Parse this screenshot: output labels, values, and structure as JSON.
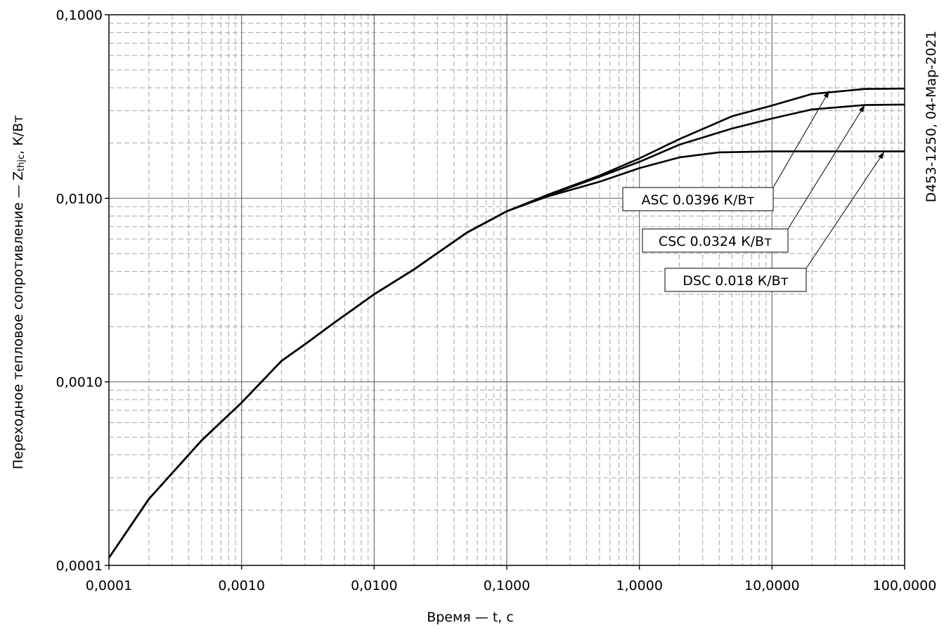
{
  "chart_data": {
    "type": "line",
    "xlabel": "Время — t, с",
    "ylabel_main": "Переходное тепловое сопротивление — Z",
    "ylabel_sub": "thjc",
    "ylabel_unit": ", К/Вт",
    "stamp": "D453-1250, 04-Мар-2021",
    "x_scale": "log",
    "y_scale": "log",
    "xlim": [
      0.0001,
      100
    ],
    "ylim": [
      0.0001,
      0.1
    ],
    "grid": true,
    "x_ticks": [
      {
        "value": 0.0001,
        "label": "0,0001"
      },
      {
        "value": 0.001,
        "label": "0,0010"
      },
      {
        "value": 0.01,
        "label": "0,0100"
      },
      {
        "value": 0.1,
        "label": "0,1000"
      },
      {
        "value": 1,
        "label": "1,0000"
      },
      {
        "value": 10,
        "label": "10,0000"
      },
      {
        "value": 100,
        "label": "100,0000"
      }
    ],
    "y_ticks": [
      {
        "value": 0.0001,
        "label": "0,0001"
      },
      {
        "value": 0.001,
        "label": "0,0010"
      },
      {
        "value": 0.01,
        "label": "0,0100"
      },
      {
        "value": 0.1,
        "label": "0,1000"
      }
    ],
    "series": [
      {
        "name": "ASC 0.0396 К/Вт",
        "x": [
          0.0001,
          0.0002,
          0.0005,
          0.001,
          0.002,
          0.003,
          0.005,
          0.01,
          0.02,
          0.05,
          0.1,
          0.2,
          0.5,
          1,
          2,
          5,
          10,
          20,
          50,
          100
        ],
        "y": [
          0.00011,
          0.00023,
          0.00048,
          0.00077,
          0.0013,
          0.0016,
          0.0021,
          0.003,
          0.0041,
          0.0065,
          0.0085,
          0.0104,
          0.0133,
          0.0165,
          0.021,
          0.028,
          0.032,
          0.037,
          0.0394,
          0.0396
        ]
      },
      {
        "name": "CSC 0.0324 К/Вт",
        "x": [
          0.0001,
          0.0002,
          0.0005,
          0.001,
          0.002,
          0.003,
          0.005,
          0.01,
          0.02,
          0.05,
          0.1,
          0.2,
          0.5,
          1,
          2,
          5,
          10,
          20,
          50,
          100
        ],
        "y": [
          0.00011,
          0.00023,
          0.00048,
          0.00077,
          0.0013,
          0.0016,
          0.0021,
          0.003,
          0.0041,
          0.0065,
          0.0085,
          0.0103,
          0.0131,
          0.0158,
          0.0196,
          0.024,
          0.0272,
          0.0305,
          0.0322,
          0.0324
        ]
      },
      {
        "name": "DSC 0.018 К/Вт",
        "x": [
          0.0001,
          0.0002,
          0.0005,
          0.001,
          0.002,
          0.003,
          0.005,
          0.01,
          0.02,
          0.05,
          0.1,
          0.2,
          0.5,
          1,
          2,
          4,
          10,
          100
        ],
        "y": [
          0.00011,
          0.00023,
          0.00048,
          0.00077,
          0.0013,
          0.0016,
          0.0021,
          0.003,
          0.0041,
          0.0065,
          0.0085,
          0.0102,
          0.0123,
          0.0146,
          0.0167,
          0.0178,
          0.018,
          0.018
        ]
      }
    ],
    "annotations": [
      {
        "text": "ASC 0.0396 К/Вт",
        "arrow_to": {
          "x": 27,
          "y": 0.0385
        }
      },
      {
        "text": "CSC 0.0324 К/Вт",
        "arrow_to": {
          "x": 50,
          "y": 0.0322
        }
      },
      {
        "text": "DSC 0.018 К/Вт",
        "arrow_to": {
          "x": 70,
          "y": 0.0179
        }
      }
    ]
  }
}
